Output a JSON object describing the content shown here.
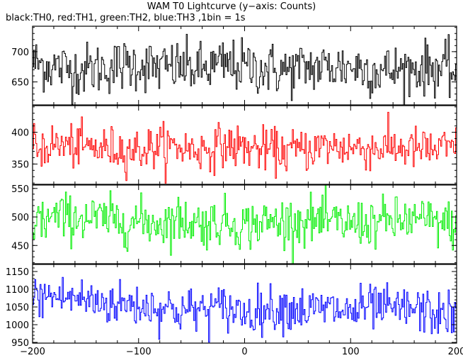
{
  "chart_data": {
    "type": "line",
    "title": "WAM T0 Lightcurve (y−axis: Counts)",
    "subtitle": "black:TH0, red:TH1, green:TH2, blue:TH3 ,1bin = 1s",
    "xlim": [
      -200,
      200
    ],
    "x_ticks": [
      -200,
      -100,
      0,
      100,
      200
    ],
    "x_tick_labels": [
      "−200",
      "−100",
      "0",
      "100",
      "200"
    ],
    "bin_seconds": 1,
    "grid": false,
    "panels": [
      {
        "name": "TH0",
        "color": "#000000",
        "ylim": [
          612,
          742
        ],
        "y_ticks": [
          650,
          700
        ],
        "mean": 675,
        "std": 22,
        "anchors": [
          [
            -200,
            682
          ],
          [
            -180,
            675
          ],
          [
            -160,
            670
          ],
          [
            -140,
            672
          ],
          [
            -120,
            676
          ],
          [
            -100,
            680
          ],
          [
            -80,
            672
          ],
          [
            -60,
            675
          ],
          [
            -40,
            670
          ],
          [
            -20,
            678
          ],
          [
            0,
            675
          ],
          [
            20,
            672
          ],
          [
            40,
            668
          ],
          [
            60,
            675
          ],
          [
            80,
            674
          ],
          [
            100,
            676
          ],
          [
            120,
            670
          ],
          [
            140,
            668
          ],
          [
            160,
            672
          ],
          [
            180,
            674
          ],
          [
            200,
            665
          ]
        ]
      },
      {
        "name": "TH1",
        "color": "#ff0000",
        "ylim": [
          318,
          442
        ],
        "y_ticks": [
          350,
          400
        ],
        "mean": 375,
        "std": 17,
        "anchors": [
          [
            -200,
            375
          ],
          [
            -180,
            380
          ],
          [
            -160,
            378
          ],
          [
            -140,
            375
          ],
          [
            -120,
            374
          ],
          [
            -100,
            372
          ],
          [
            -80,
            378
          ],
          [
            -60,
            376
          ],
          [
            -40,
            372
          ],
          [
            -20,
            380
          ],
          [
            0,
            376
          ],
          [
            20,
            372
          ],
          [
            40,
            370
          ],
          [
            60,
            374
          ],
          [
            80,
            378
          ],
          [
            100,
            376
          ],
          [
            120,
            375
          ],
          [
            140,
            376
          ],
          [
            160,
            374
          ],
          [
            180,
            372
          ],
          [
            200,
            375
          ]
        ]
      },
      {
        "name": "TH2",
        "color": "#00ee00",
        "ylim": [
          418,
          556
        ],
        "y_ticks": [
          450,
          500,
          550
        ],
        "mean": 492,
        "std": 21,
        "anchors": [
          [
            -200,
            492
          ],
          [
            -180,
            498
          ],
          [
            -160,
            500
          ],
          [
            -140,
            496
          ],
          [
            -120,
            494
          ],
          [
            -100,
            492
          ],
          [
            -80,
            490
          ],
          [
            -60,
            495
          ],
          [
            -40,
            488
          ],
          [
            -20,
            492
          ],
          [
            0,
            485
          ],
          [
            20,
            490
          ],
          [
            40,
            492
          ],
          [
            60,
            494
          ],
          [
            80,
            490
          ],
          [
            100,
            488
          ],
          [
            120,
            490
          ],
          [
            140,
            492
          ],
          [
            160,
            495
          ],
          [
            180,
            490
          ],
          [
            200,
            485
          ]
        ]
      },
      {
        "name": "TH3",
        "color": "#0000ff",
        "ylim": [
          948,
          1170
        ],
        "y_ticks": [
          950,
          1000,
          1050,
          1100,
          1150
        ],
        "mean": 1050,
        "std": 32,
        "anchors": [
          [
            -200,
            1075
          ],
          [
            -180,
            1080
          ],
          [
            -160,
            1075
          ],
          [
            -140,
            1065
          ],
          [
            -120,
            1060
          ],
          [
            -100,
            1055
          ],
          [
            -80,
            1050
          ],
          [
            -60,
            1040
          ],
          [
            -40,
            1042
          ],
          [
            -20,
            1048
          ],
          [
            0,
            1035
          ],
          [
            20,
            1045
          ],
          [
            40,
            1050
          ],
          [
            60,
            1040
          ],
          [
            80,
            1045
          ],
          [
            100,
            1035
          ],
          [
            120,
            1050
          ],
          [
            140,
            1040
          ],
          [
            160,
            1045
          ],
          [
            180,
            1030
          ],
          [
            200,
            1025
          ]
        ]
      }
    ]
  }
}
